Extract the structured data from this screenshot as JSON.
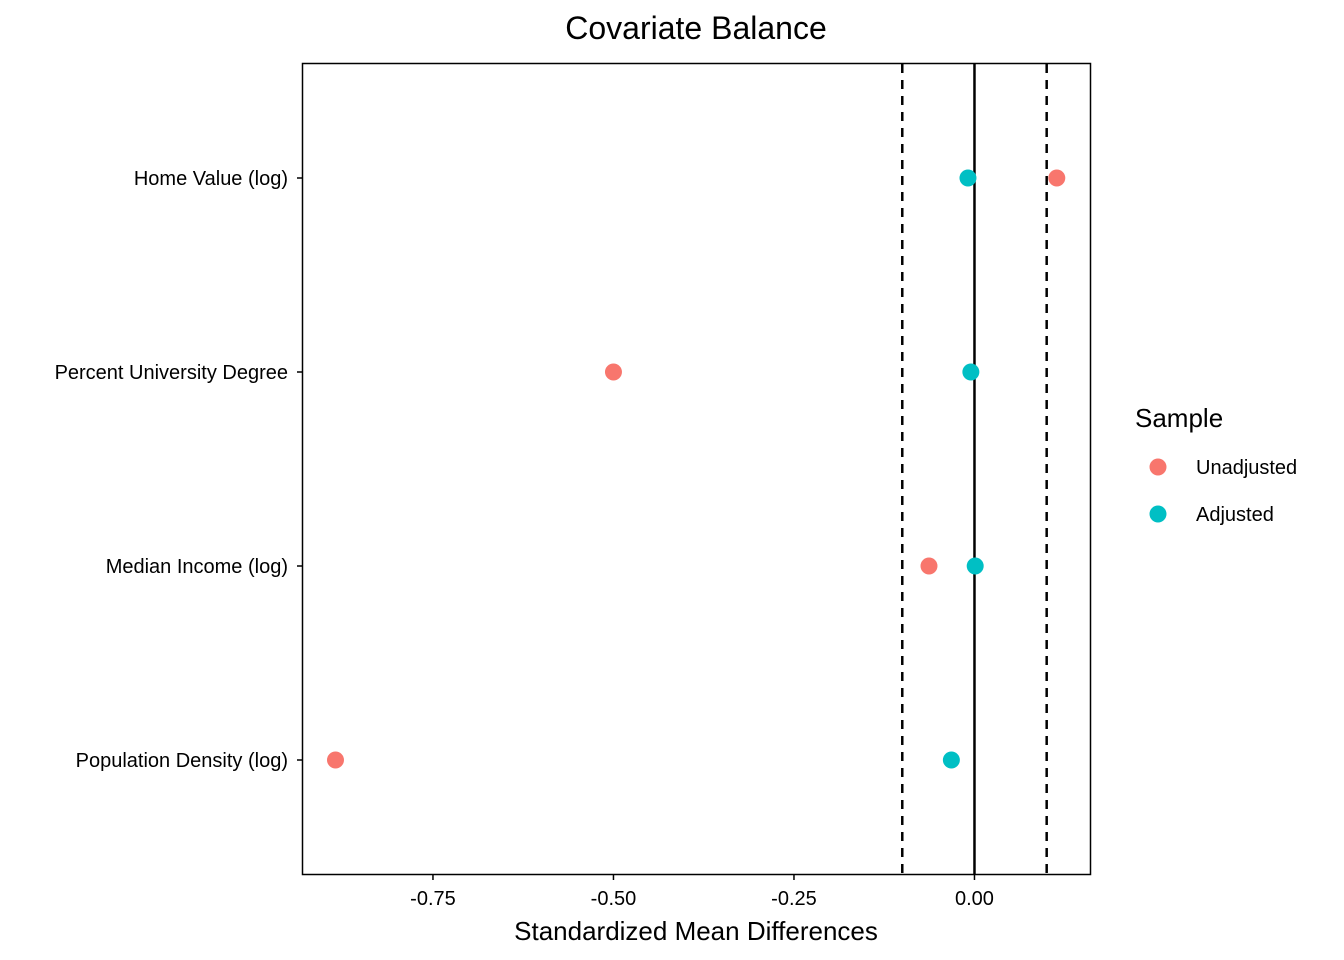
{
  "chart_data": {
    "type": "scatter",
    "title": "Covariate Balance",
    "xlabel": "Standardized Mean Differences",
    "ylabel": "",
    "xlim": [
      -0.93,
      0.16
    ],
    "x_ticks": [
      -0.75,
      -0.5,
      -0.25,
      0.0
    ],
    "x_tick_labels": [
      "-0.75",
      "-0.50",
      "-0.25",
      "0.00"
    ],
    "categories": [
      "Home Value (log)",
      "Percent University Degree",
      "Median Income (log)",
      "Population Density (log)"
    ],
    "reference_lines": [
      {
        "x": 0.0,
        "style": "solid"
      },
      {
        "x": -0.1,
        "style": "dashed"
      },
      {
        "x": 0.1,
        "style": "dashed"
      }
    ],
    "legend": {
      "title": "Sample",
      "placement": "right"
    },
    "grid": false,
    "series": [
      {
        "name": "Unadjusted",
        "color": "#F8766D",
        "values": [
          0.114,
          -0.5,
          -0.063,
          -0.885
        ]
      },
      {
        "name": "Adjusted",
        "color": "#00BFC4",
        "values": [
          -0.009,
          -0.005,
          0.001,
          -0.032
        ]
      }
    ]
  }
}
